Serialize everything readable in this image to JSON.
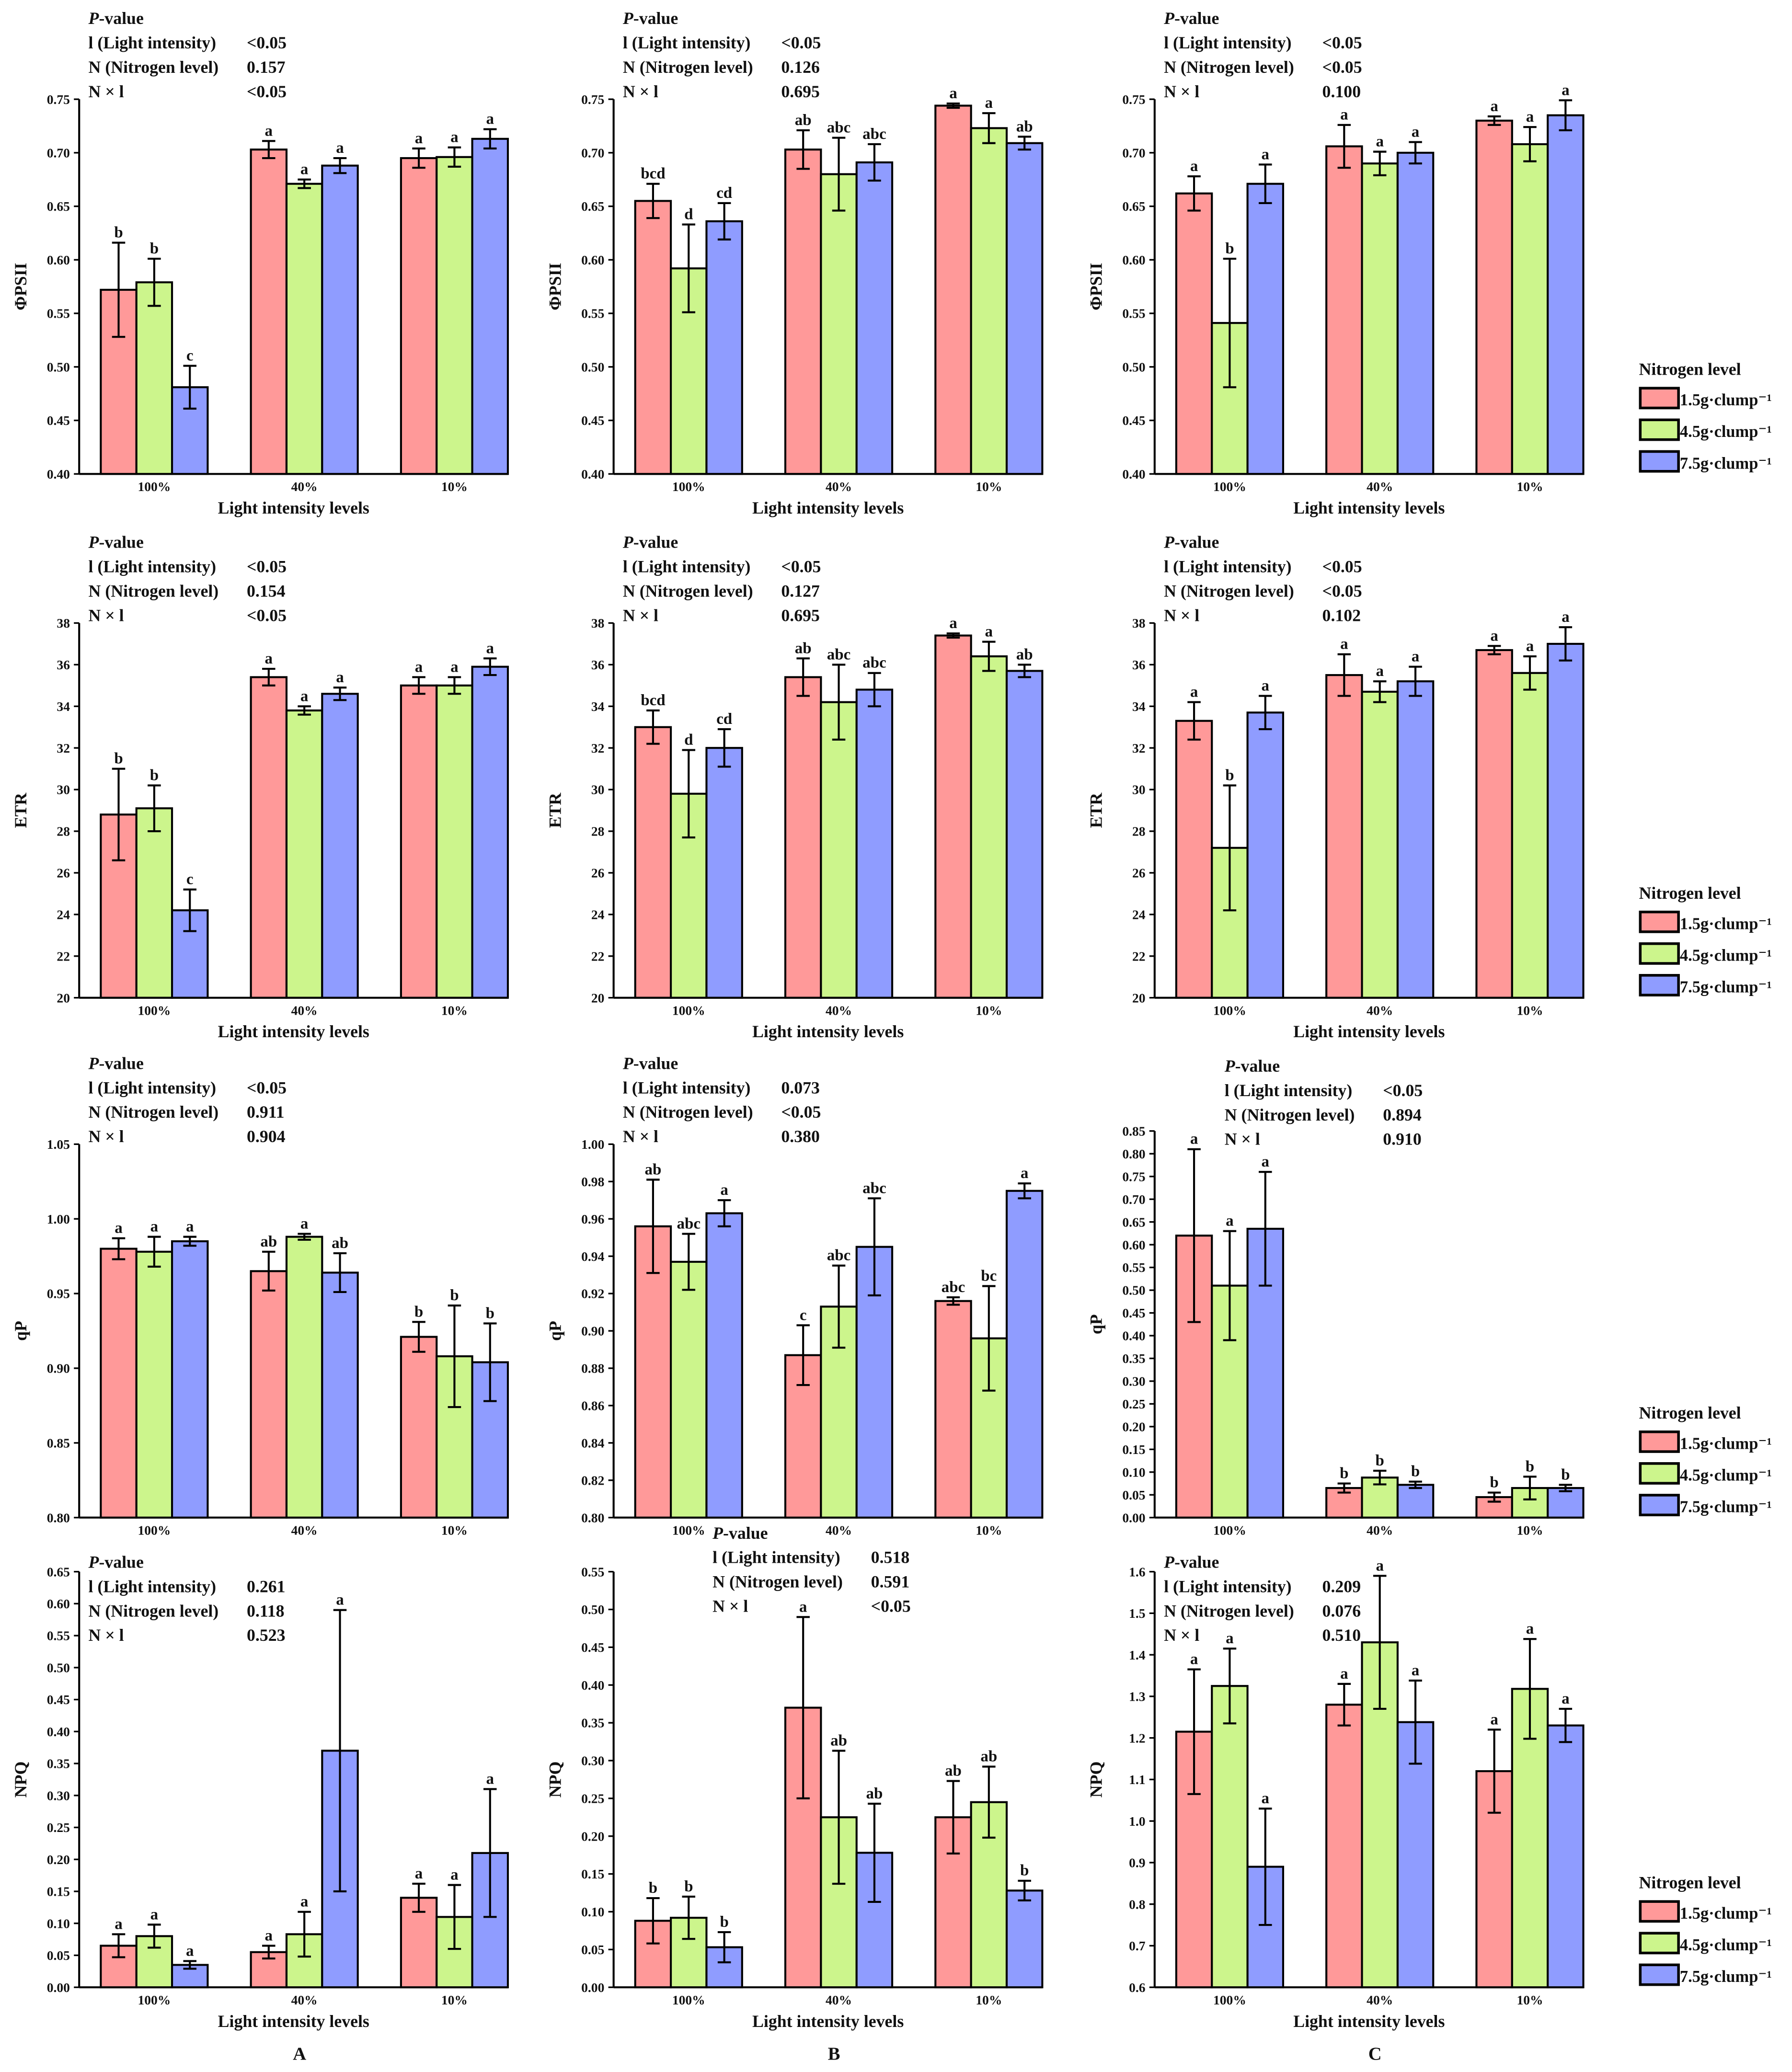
{
  "colors": {
    "1.5": "#FF9999",
    "4.5": "#CCF58C",
    "7.5": "#8F9CFF",
    "axis": "#000000"
  },
  "legend": {
    "title": "Nitrogen level",
    "items": [
      "1.5g·clump⁻¹",
      "4.5g·clump⁻¹",
      "7.5g·clump⁻¹"
    ]
  },
  "column_labels": [
    "A",
    "B",
    "C"
  ],
  "pvalue_header": {
    "italic": "P",
    "rest": "-value"
  },
  "pvalue_labels": [
    "l (Light intensity)",
    "N (Nitrogen level)",
    "N × l"
  ],
  "chart_data": [
    {
      "type": "bar",
      "panel": "A1",
      "ylabel": "ΦPSII",
      "xlabel": "Light intensity levels",
      "categories": [
        "100%",
        "40%",
        "10%"
      ],
      "ylim": [
        0.4,
        0.75
      ],
      "ystep": 0.05,
      "ydec": 2,
      "pvalues": [
        "<0.05",
        "0.157",
        "<0.05"
      ],
      "series": [
        {
          "name": "1.5g·clump⁻¹",
          "values": [
            0.572,
            0.703,
            0.695
          ],
          "errors": [
            0.044,
            0.008,
            0.009
          ],
          "letters": [
            "b",
            "a",
            "a"
          ]
        },
        {
          "name": "4.5g·clump⁻¹",
          "values": [
            0.579,
            0.671,
            0.696
          ],
          "errors": [
            0.022,
            0.004,
            0.009
          ],
          "letters": [
            "b",
            "a",
            "a"
          ]
        },
        {
          "name": "7.5g·clump⁻¹",
          "values": [
            0.481,
            0.688,
            0.713
          ],
          "errors": [
            0.02,
            0.007,
            0.009
          ],
          "letters": [
            "c",
            "a",
            "a"
          ]
        }
      ]
    },
    {
      "type": "bar",
      "panel": "B1",
      "ylabel": "ΦPSII",
      "xlabel": "Light intensity levels",
      "categories": [
        "100%",
        "40%",
        "10%"
      ],
      "ylim": [
        0.4,
        0.75
      ],
      "ystep": 0.05,
      "ydec": 2,
      "pvalues": [
        "<0.05",
        "0.126",
        "0.695"
      ],
      "series": [
        {
          "name": "1.5g·clump⁻¹",
          "values": [
            0.655,
            0.703,
            0.744
          ],
          "errors": [
            0.016,
            0.018,
            0.002
          ],
          "letters": [
            "bcd",
            "ab",
            "a"
          ]
        },
        {
          "name": "4.5g·clump⁻¹",
          "values": [
            0.592,
            0.68,
            0.723
          ],
          "errors": [
            0.041,
            0.034,
            0.014
          ],
          "letters": [
            "d",
            "abc",
            "a"
          ]
        },
        {
          "name": "7.5g·clump⁻¹",
          "values": [
            0.636,
            0.691,
            0.709
          ],
          "errors": [
            0.017,
            0.017,
            0.006
          ],
          "letters": [
            "cd",
            "abc",
            "ab"
          ]
        }
      ]
    },
    {
      "type": "bar",
      "panel": "C1",
      "ylabel": "ΦPSII",
      "xlabel": "Light intensity levels",
      "categories": [
        "100%",
        "40%",
        "10%"
      ],
      "ylim": [
        0.4,
        0.75
      ],
      "ystep": 0.05,
      "ydec": 2,
      "pvalues": [
        "<0.05",
        "<0.05",
        "0.100"
      ],
      "series": [
        {
          "name": "1.5g·clump⁻¹",
          "values": [
            0.662,
            0.706,
            0.73
          ],
          "errors": [
            0.016,
            0.02,
            0.004
          ],
          "letters": [
            "a",
            "a",
            "a"
          ]
        },
        {
          "name": "4.5g·clump⁻¹",
          "values": [
            0.541,
            0.69,
            0.708
          ],
          "errors": [
            0.06,
            0.011,
            0.016
          ],
          "letters": [
            "b",
            "a",
            "a"
          ]
        },
        {
          "name": "7.5g·clump⁻¹",
          "values": [
            0.671,
            0.7,
            0.735
          ],
          "errors": [
            0.018,
            0.01,
            0.014
          ],
          "letters": [
            "a",
            "a",
            "a"
          ]
        }
      ]
    },
    {
      "type": "bar",
      "panel": "A2",
      "ylabel": "ETR",
      "xlabel": "Light intensity levels",
      "categories": [
        "100%",
        "40%",
        "10%"
      ],
      "ylim": [
        20,
        38
      ],
      "ystep": 2,
      "ydec": 0,
      "pvalues": [
        "<0.05",
        "0.154",
        "<0.05"
      ],
      "series": [
        {
          "name": "1.5g·clump⁻¹",
          "values": [
            28.8,
            35.4,
            35.0
          ],
          "errors": [
            2.2,
            0.4,
            0.4
          ],
          "letters": [
            "b",
            "a",
            "a"
          ]
        },
        {
          "name": "4.5g·clump⁻¹",
          "values": [
            29.1,
            33.8,
            35.0
          ],
          "errors": [
            1.1,
            0.2,
            0.4
          ],
          "letters": [
            "b",
            "a",
            "a"
          ]
        },
        {
          "name": "7.5g·clump⁻¹",
          "values": [
            24.2,
            34.6,
            35.9
          ],
          "errors": [
            1.0,
            0.3,
            0.4
          ],
          "letters": [
            "c",
            "a",
            "a"
          ]
        }
      ]
    },
    {
      "type": "bar",
      "panel": "B2",
      "ylabel": "ETR",
      "xlabel": "Light intensity levels",
      "categories": [
        "100%",
        "40%",
        "10%"
      ],
      "ylim": [
        20,
        38
      ],
      "ystep": 2,
      "ydec": 0,
      "pvalues": [
        "<0.05",
        "0.127",
        "0.695"
      ],
      "series": [
        {
          "name": "1.5g·clump⁻¹",
          "values": [
            33.0,
            35.4,
            37.4
          ],
          "errors": [
            0.8,
            0.9,
            0.1
          ],
          "letters": [
            "bcd",
            "ab",
            "a"
          ]
        },
        {
          "name": "4.5g·clump⁻¹",
          "values": [
            29.8,
            34.2,
            36.4
          ],
          "errors": [
            2.1,
            1.8,
            0.7
          ],
          "letters": [
            "d",
            "abc",
            "a"
          ]
        },
        {
          "name": "7.5g·clump⁻¹",
          "values": [
            32.0,
            34.8,
            35.7
          ],
          "errors": [
            0.9,
            0.8,
            0.3
          ],
          "letters": [
            "cd",
            "abc",
            "ab"
          ]
        }
      ]
    },
    {
      "type": "bar",
      "panel": "C2",
      "ylabel": "ETR",
      "xlabel": "Light intensity levels",
      "categories": [
        "100%",
        "40%",
        "10%"
      ],
      "ylim": [
        20,
        38
      ],
      "ystep": 2,
      "ydec": 0,
      "pvalues": [
        "<0.05",
        "<0.05",
        "0.102"
      ],
      "series": [
        {
          "name": "1.5g·clump⁻¹",
          "values": [
            33.3,
            35.5,
            36.7
          ],
          "errors": [
            0.9,
            1.0,
            0.2
          ],
          "letters": [
            "a",
            "a",
            "a"
          ]
        },
        {
          "name": "4.5g·clump⁻¹",
          "values": [
            27.2,
            34.7,
            35.6
          ],
          "errors": [
            3.0,
            0.5,
            0.8
          ],
          "letters": [
            "b",
            "a",
            "a"
          ]
        },
        {
          "name": "7.5g·clump⁻¹",
          "values": [
            33.7,
            35.2,
            37.0
          ],
          "errors": [
            0.8,
            0.7,
            0.8
          ],
          "letters": [
            "a",
            "a",
            "a"
          ]
        }
      ]
    },
    {
      "type": "bar",
      "panel": "A3",
      "ylabel": "qP",
      "xlabel": "",
      "categories": [
        "100%",
        "40%",
        "10%"
      ],
      "ylim": [
        0.8,
        1.05
      ],
      "ystep": 0.05,
      "ydec": 2,
      "pvalues": [
        "<0.05",
        "0.911",
        "0.904"
      ],
      "series": [
        {
          "name": "1.5g·clump⁻¹",
          "values": [
            0.98,
            0.965,
            0.921
          ],
          "errors": [
            0.007,
            0.013,
            0.01
          ],
          "letters": [
            "a",
            "ab",
            "b"
          ]
        },
        {
          "name": "4.5g·clump⁻¹",
          "values": [
            0.978,
            0.988,
            0.908
          ],
          "errors": [
            0.01,
            0.002,
            0.034
          ],
          "letters": [
            "a",
            "a",
            "b"
          ]
        },
        {
          "name": "7.5g·clump⁻¹",
          "values": [
            0.985,
            0.964,
            0.904
          ],
          "errors": [
            0.003,
            0.013,
            0.026
          ],
          "letters": [
            "a",
            "ab",
            "b"
          ]
        }
      ]
    },
    {
      "type": "bar",
      "panel": "B3",
      "ylabel": "qP",
      "xlabel": "",
      "categories": [
        "100%",
        "40%",
        "10%"
      ],
      "ylim": [
        0.8,
        1.0
      ],
      "ystep": 0.02,
      "ydec": 2,
      "pvalues": [
        "0.073",
        "<0.05",
        "0.380"
      ],
      "series": [
        {
          "name": "1.5g·clump⁻¹",
          "values": [
            0.956,
            0.887,
            0.916
          ],
          "errors": [
            0.025,
            0.016,
            0.002
          ],
          "letters": [
            "ab",
            "c",
            "abc"
          ]
        },
        {
          "name": "4.5g·clump⁻¹",
          "values": [
            0.937,
            0.913,
            0.896
          ],
          "errors": [
            0.015,
            0.022,
            0.028
          ],
          "letters": [
            "abc",
            "abc",
            "bc"
          ]
        },
        {
          "name": "7.5g·clump⁻¹",
          "values": [
            0.963,
            0.945,
            0.975
          ],
          "errors": [
            0.007,
            0.026,
            0.004
          ],
          "letters": [
            "a",
            "abc",
            "a"
          ]
        }
      ]
    },
    {
      "type": "bar",
      "panel": "C3",
      "ylabel": "qP",
      "xlabel": "",
      "categories": [
        "100%",
        "40%",
        "10%"
      ],
      "ylim": [
        0,
        0.85
      ],
      "ystep": 0.05,
      "ydec": 2,
      "pvalues": [
        "<0.05",
        "0.894",
        "0.910"
      ],
      "series": [
        {
          "name": "1.5g·clump⁻¹",
          "values": [
            0.62,
            0.065,
            0.045
          ],
          "errors": [
            0.19,
            0.01,
            0.01
          ],
          "letters": [
            "a",
            "b",
            "b"
          ]
        },
        {
          "name": "4.5g·clump⁻¹",
          "values": [
            0.51,
            0.088,
            0.065
          ],
          "errors": [
            0.12,
            0.015,
            0.025
          ],
          "letters": [
            "a",
            "b",
            "b"
          ]
        },
        {
          "name": "7.5g·clump⁻¹",
          "values": [
            0.635,
            0.072,
            0.065
          ],
          "errors": [
            0.125,
            0.007,
            0.007
          ],
          "letters": [
            "a",
            "b",
            "b"
          ]
        }
      ]
    },
    {
      "type": "bar",
      "panel": "A4",
      "ylabel": "NPQ",
      "xlabel": "Light intensity levels",
      "categories": [
        "100%",
        "40%",
        "10%"
      ],
      "ylim": [
        0,
        0.65
      ],
      "ystep": 0.05,
      "ydec": 2,
      "pvalues": [
        "0.261",
        "0.118",
        "0.523"
      ],
      "series": [
        {
          "name": "1.5g·clump⁻¹",
          "values": [
            0.065,
            0.055,
            0.14
          ],
          "errors": [
            0.018,
            0.01,
            0.022
          ],
          "letters": [
            "a",
            "a",
            "a"
          ]
        },
        {
          "name": "4.5g·clump⁻¹",
          "values": [
            0.08,
            0.083,
            0.11
          ],
          "errors": [
            0.018,
            0.035,
            0.05
          ],
          "letters": [
            "a",
            "a",
            "a"
          ]
        },
        {
          "name": "7.5g·clump⁻¹",
          "values": [
            0.035,
            0.37,
            0.21
          ],
          "errors": [
            0.006,
            0.22,
            0.1
          ],
          "letters": [
            "a",
            "a",
            "a"
          ]
        }
      ]
    },
    {
      "type": "bar",
      "panel": "B4",
      "ylabel": "NPQ",
      "xlabel": "Light intensity levels",
      "categories": [
        "100%",
        "40%",
        "10%"
      ],
      "ylim": [
        0,
        0.55
      ],
      "ystep": 0.05,
      "ydec": 2,
      "pvalues": [
        "0.518",
        "0.591",
        "<0.05"
      ],
      "series": [
        {
          "name": "1.5g·clump⁻¹",
          "values": [
            0.088,
            0.37,
            0.225
          ],
          "errors": [
            0.03,
            0.12,
            0.048
          ],
          "letters": [
            "b",
            "a",
            "ab"
          ]
        },
        {
          "name": "4.5g·clump⁻¹",
          "values": [
            0.092,
            0.225,
            0.245
          ],
          "errors": [
            0.028,
            0.088,
            0.047
          ],
          "letters": [
            "b",
            "ab",
            "ab"
          ]
        },
        {
          "name": "7.5g·clump⁻¹",
          "values": [
            0.053,
            0.178,
            0.128
          ],
          "errors": [
            0.02,
            0.065,
            0.013
          ],
          "letters": [
            "b",
            "ab",
            "b"
          ]
        }
      ]
    },
    {
      "type": "bar",
      "panel": "C4",
      "ylabel": "NPQ",
      "xlabel": "Light intensity levels",
      "categories": [
        "100%",
        "40%",
        "10%"
      ],
      "ylim": [
        0.6,
        1.6
      ],
      "ystep": 0.1,
      "ydec": 1,
      "pvalues": [
        "0.209",
        "0.076",
        "0.510"
      ],
      "series": [
        {
          "name": "1.5g·clump⁻¹",
          "values": [
            1.215,
            1.28,
            1.12
          ],
          "errors": [
            0.15,
            0.05,
            0.1
          ],
          "letters": [
            "a",
            "a",
            "a"
          ]
        },
        {
          "name": "4.5g·clump⁻¹",
          "values": [
            1.325,
            1.43,
            1.318
          ],
          "errors": [
            0.09,
            0.16,
            0.12
          ],
          "letters": [
            "a",
            "a",
            "a"
          ]
        },
        {
          "name": "7.5g·clump⁻¹",
          "values": [
            0.89,
            1.238,
            1.23
          ],
          "errors": [
            0.14,
            0.1,
            0.04
          ],
          "letters": [
            "a",
            "a",
            "a"
          ]
        }
      ]
    }
  ]
}
